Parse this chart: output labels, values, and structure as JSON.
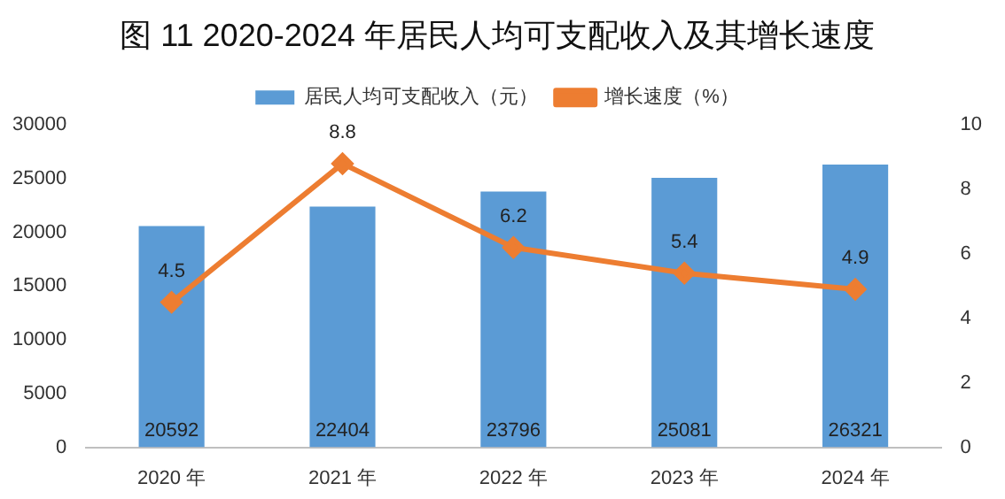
{
  "chart_data": {
    "type": "bar",
    "title": "图 11 2020-2024 年居民人均可支配收入及其增长速度",
    "categories": [
      "2020 年",
      "2021 年",
      "2022 年",
      "2023 年",
      "2024 年"
    ],
    "series": [
      {
        "name": "居民人均可支配收入（元）",
        "color": "#5b9bd5",
        "values": [
          20592,
          22404,
          23796,
          25081,
          26321
        ]
      },
      {
        "name": "增长速度（%）",
        "type": "line",
        "axis": "y2",
        "color": "#ed7d31",
        "values": [
          4.5,
          8.8,
          6.2,
          5.4,
          4.9
        ]
      }
    ],
    "ylim": [
      0,
      30000
    ],
    "yticks": [
      0,
      5000,
      10000,
      15000,
      20000,
      25000,
      30000
    ],
    "y2lim": [
      0,
      10
    ],
    "y2ticks": [
      0,
      2,
      4,
      6,
      8,
      10
    ],
    "data_labels": true,
    "legend": "top",
    "marker": "diamond",
    "line_style": "solid",
    "grid": false
  }
}
